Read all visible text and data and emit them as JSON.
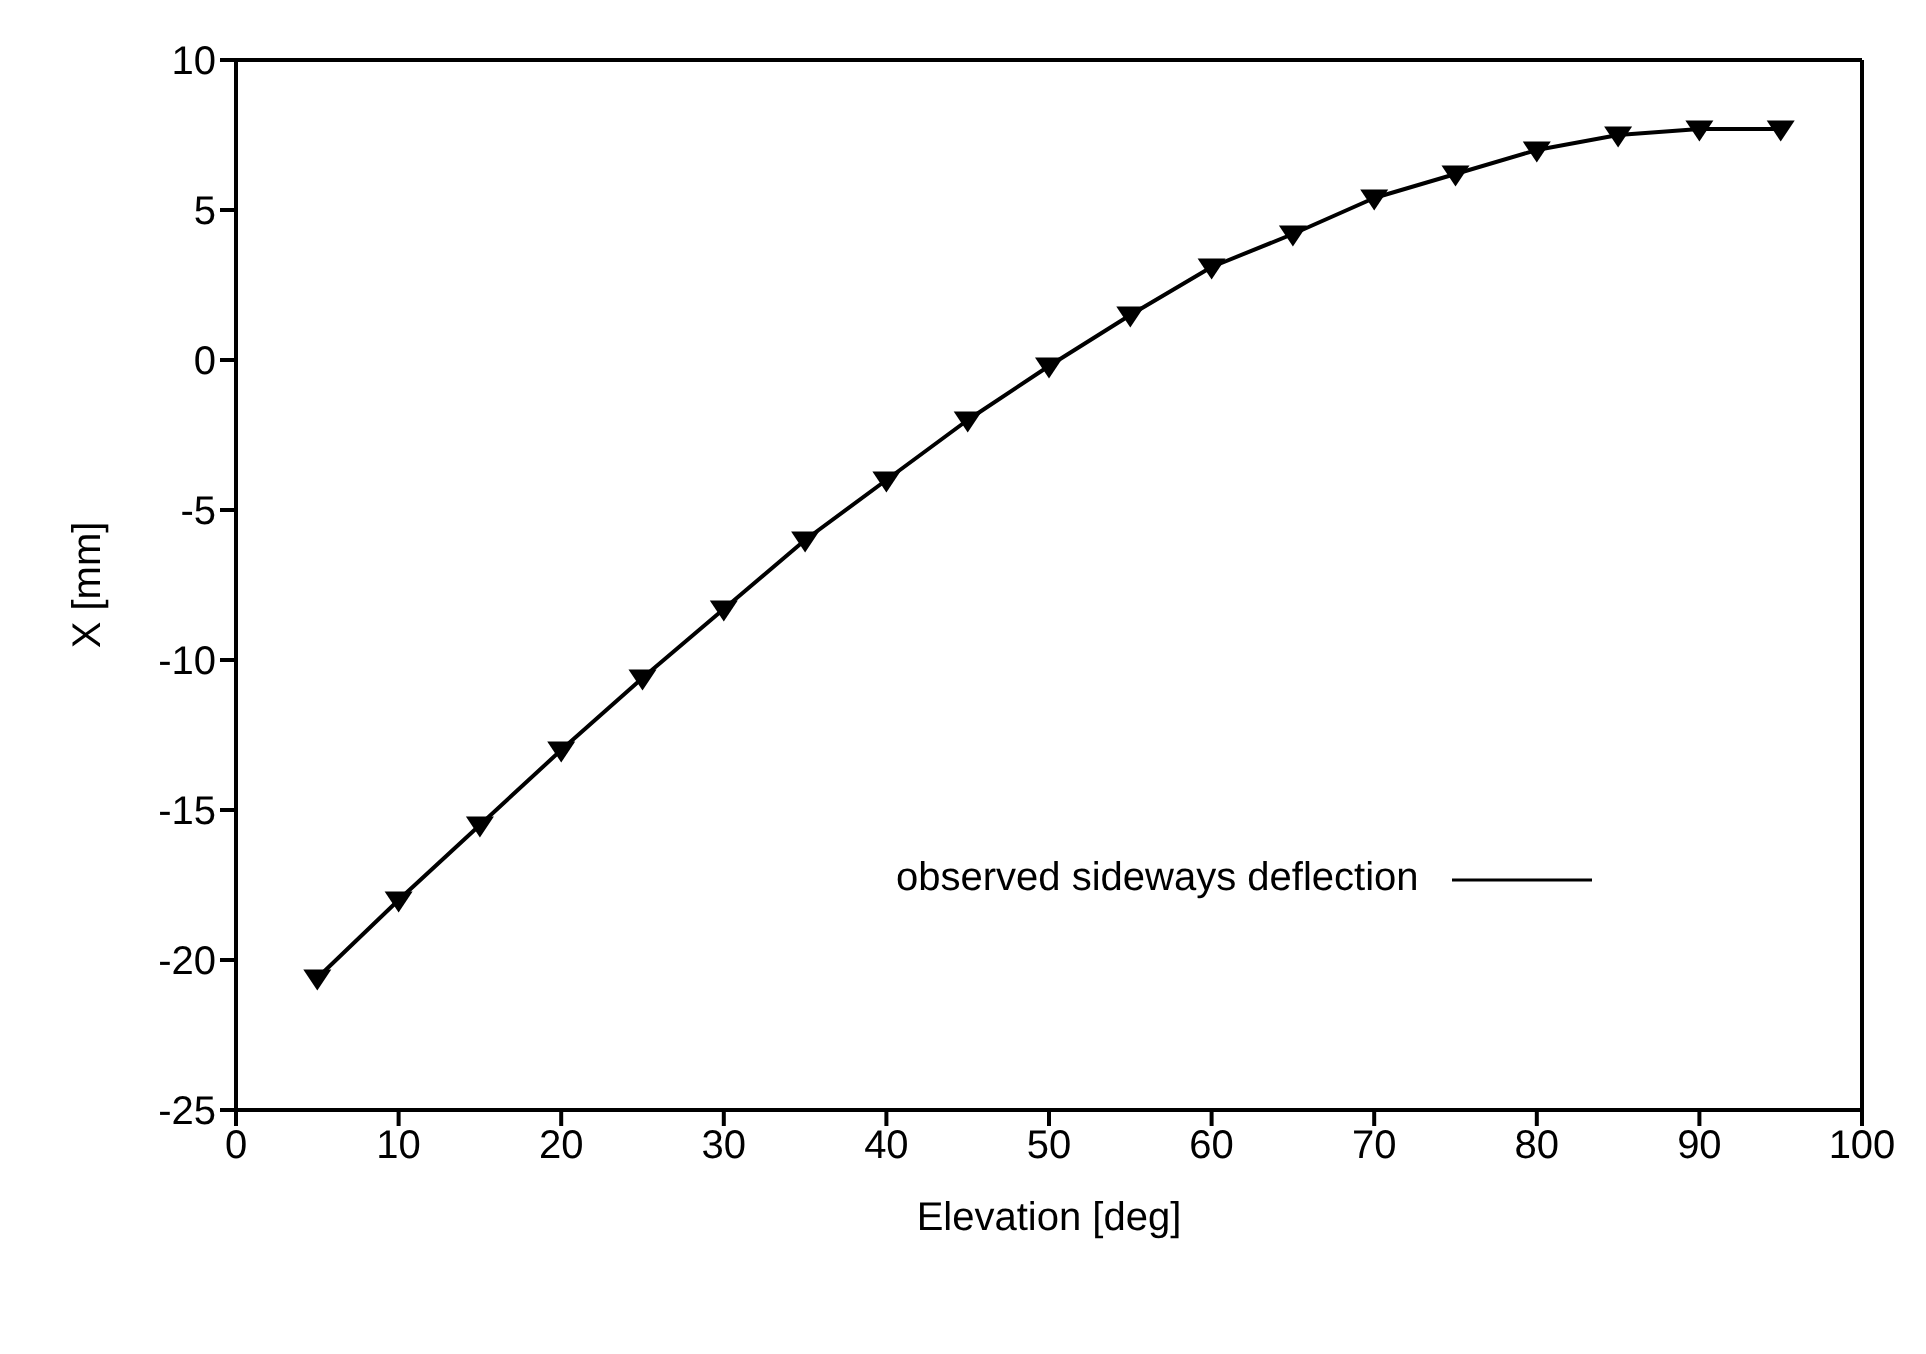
{
  "chart_data": {
    "type": "line",
    "xlabel": "Elevation [deg]",
    "ylabel": "X [mm]",
    "x": [
      5,
      10,
      15,
      20,
      25,
      30,
      35,
      40,
      45,
      50,
      55,
      60,
      65,
      70,
      75,
      80,
      85,
      90,
      95
    ],
    "series": [
      {
        "name": "observed sideways deflection",
        "color": "#000000",
        "values": [
          -20.6,
          -18.0,
          -15.5,
          -13.0,
          -10.6,
          -8.3,
          -6.0,
          -4.0,
          -2.0,
          -0.2,
          1.5,
          3.1,
          4.2,
          5.4,
          6.2,
          7.0,
          7.5,
          7.7,
          7.7
        ]
      }
    ],
    "xlim": [
      0,
      100
    ],
    "xticks": [
      0,
      10,
      20,
      30,
      40,
      50,
      60,
      70,
      80,
      90,
      100
    ],
    "ylim": [
      -25,
      10
    ],
    "yticks": [
      -25,
      -20,
      -15,
      -10,
      -5,
      0,
      5,
      10
    ],
    "marker": "triangle",
    "line_style": "solid",
    "legend": "bottom right",
    "grid": false
  }
}
